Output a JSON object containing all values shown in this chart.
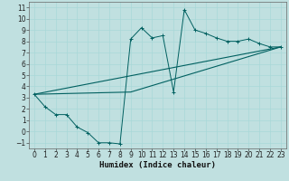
{
  "xlabel": "Humidex (Indice chaleur)",
  "bg_color": "#c0e0e0",
  "line_color": "#006060",
  "xlim": [
    -0.5,
    23.5
  ],
  "ylim": [
    -1.5,
    11.5
  ],
  "xticks": [
    0,
    1,
    2,
    3,
    4,
    5,
    6,
    7,
    8,
    9,
    10,
    11,
    12,
    13,
    14,
    15,
    16,
    17,
    18,
    19,
    20,
    21,
    22,
    23
  ],
  "yticks": [
    -1,
    0,
    1,
    2,
    3,
    4,
    5,
    6,
    7,
    8,
    9,
    10,
    11
  ],
  "line1_x": [
    0,
    1,
    2,
    3,
    4,
    5,
    6,
    7,
    8,
    9,
    10,
    11,
    12,
    13,
    14,
    15,
    16,
    17,
    18,
    19,
    20,
    21,
    22,
    23
  ],
  "line1_y": [
    3.3,
    2.2,
    1.5,
    1.5,
    0.4,
    -0.1,
    -1.0,
    -1.0,
    -1.1,
    8.2,
    9.2,
    8.3,
    8.5,
    3.5,
    10.8,
    9.0,
    8.7,
    8.3,
    8.0,
    8.0,
    8.2,
    7.8,
    7.5,
    7.5
  ],
  "line2_x": [
    0,
    23
  ],
  "line2_y": [
    3.3,
    7.5
  ],
  "line3_x": [
    0,
    9,
    23
  ],
  "line3_y": [
    3.3,
    3.5,
    7.5
  ],
  "grid_color": "#a8d8d8",
  "tick_fontsize": 5.5,
  "xlabel_fontsize": 6.5
}
